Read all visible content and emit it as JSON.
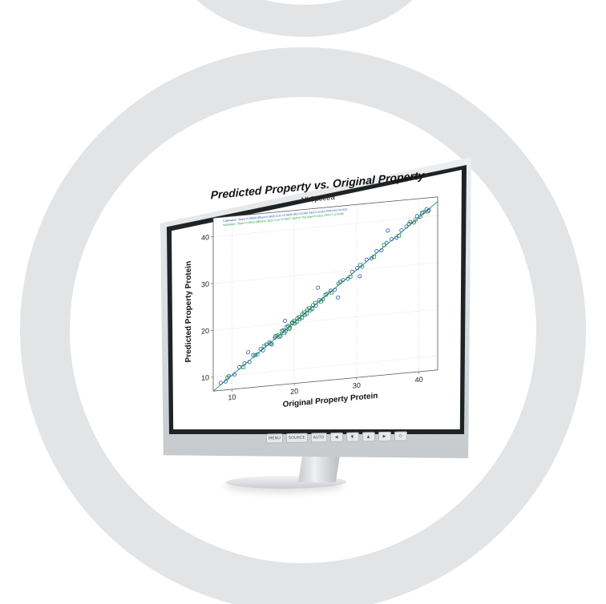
{
  "colors": {
    "ring": "#e3e4e6",
    "calibration": "#2a4fb8",
    "validation": "#1f9a3a",
    "regression_line": "#1f9a6a"
  },
  "monitor": {
    "buttons": [
      "MENU",
      "SOURCE",
      "AUTO",
      "◀",
      "▼",
      "▲",
      "▶",
      "⏻"
    ]
  },
  "chart_data": {
    "type": "scatter",
    "title": "Predicted Property vs. Original Property",
    "subtitle": "All Spectra",
    "xlabel": "Original Property Protein",
    "ylabel": "Predicted Property Protein",
    "xlim": [
      7,
      43
    ],
    "ylim": [
      7,
      44
    ],
    "xticks": [
      10,
      20,
      30,
      40
    ],
    "yticks": [
      10,
      20,
      30,
      40
    ],
    "grid": true,
    "legend_position": "top-left",
    "legend": [
      "Calibration: Slope=0.9958 Offset=0.0826 Corr.=0.9930 SEC=0.598 SECV=0.651 RPD=8.5 N=310",
      "Validation: Slope=0.9903 Offset=0.1821 Corr.=0.9907 SEP=0.702 Bias=0.0231 RPD=7.4 N=96"
    ],
    "series": [
      {
        "name": "Calibration",
        "marker": "circle",
        "points": [
          [
            8.2,
            8.6
          ],
          [
            9.0,
            8.8
          ],
          [
            9.5,
            9.9
          ],
          [
            10.4,
            10.1
          ],
          [
            11.2,
            11.6
          ],
          [
            12.0,
            12.3
          ],
          [
            12.8,
            12.5
          ],
          [
            13.4,
            13.9
          ],
          [
            14.1,
            14.0
          ],
          [
            14.6,
            15.1
          ],
          [
            15.0,
            14.7
          ],
          [
            15.5,
            15.9
          ],
          [
            16.0,
            16.3
          ],
          [
            16.4,
            15.8
          ],
          [
            16.9,
            17.2
          ],
          [
            17.3,
            17.6
          ],
          [
            17.8,
            17.4
          ],
          [
            18.2,
            18.6
          ],
          [
            18.6,
            18.3
          ],
          [
            19.0,
            19.4
          ],
          [
            19.3,
            19.0
          ],
          [
            19.7,
            20.1
          ],
          [
            20.1,
            19.8
          ],
          [
            20.5,
            20.9
          ],
          [
            20.9,
            20.6
          ],
          [
            21.3,
            21.7
          ],
          [
            21.7,
            21.4
          ],
          [
            22.1,
            22.5
          ],
          [
            22.6,
            22.3
          ],
          [
            23.0,
            23.4
          ],
          [
            23.5,
            23.2
          ],
          [
            24.0,
            24.3
          ],
          [
            24.6,
            24.4
          ],
          [
            25.2,
            25.5
          ],
          [
            25.8,
            26.1
          ],
          [
            26.5,
            26.2
          ],
          [
            27.1,
            27.5
          ],
          [
            27.8,
            28.1
          ],
          [
            28.6,
            28.3
          ],
          [
            29.3,
            29.7
          ],
          [
            30.1,
            30.4
          ],
          [
            30.9,
            30.6
          ],
          [
            31.6,
            32.0
          ],
          [
            32.4,
            32.2
          ],
          [
            33.2,
            33.6
          ],
          [
            34.0,
            33.7
          ],
          [
            34.8,
            35.2
          ],
          [
            35.6,
            35.9
          ],
          [
            36.4,
            36.1
          ],
          [
            37.2,
            37.6
          ],
          [
            38.0,
            38.3
          ],
          [
            38.6,
            39.2
          ],
          [
            39.2,
            39.0
          ],
          [
            39.7,
            40.3
          ],
          [
            40.2,
            40.1
          ],
          [
            40.7,
            41.0
          ],
          [
            41.2,
            41.6
          ],
          [
            41.6,
            41.3
          ],
          [
            23.8,
            27.0
          ],
          [
            27.0,
            24.5
          ],
          [
            35.0,
            37.8
          ],
          [
            18.5,
            20.6
          ],
          [
            12.6,
            14.6
          ],
          [
            30.5,
            28.6
          ]
        ]
      },
      {
        "name": "Validation",
        "marker": "square",
        "points": [
          [
            9.3,
            9.6
          ],
          [
            11.8,
            11.5
          ],
          [
            13.7,
            13.8
          ],
          [
            15.2,
            15.6
          ],
          [
            16.2,
            16.0
          ],
          [
            17.0,
            17.5
          ],
          [
            17.6,
            17.3
          ],
          [
            18.0,
            18.4
          ],
          [
            18.4,
            18.0
          ],
          [
            18.8,
            19.2
          ],
          [
            19.2,
            18.8
          ],
          [
            19.6,
            19.9
          ],
          [
            20.0,
            20.4
          ],
          [
            20.4,
            20.1
          ],
          [
            20.8,
            21.1
          ],
          [
            21.2,
            20.9
          ],
          [
            21.6,
            22.0
          ],
          [
            22.0,
            21.7
          ],
          [
            22.4,
            22.8
          ],
          [
            22.9,
            22.6
          ],
          [
            23.4,
            23.8
          ],
          [
            24.3,
            24.0
          ],
          [
            25.0,
            25.3
          ],
          [
            26.0,
            25.7
          ],
          [
            27.4,
            27.8
          ],
          [
            29.0,
            28.7
          ],
          [
            30.6,
            31.0
          ],
          [
            32.8,
            32.5
          ],
          [
            34.4,
            34.8
          ],
          [
            36.8,
            36.5
          ],
          [
            38.4,
            38.8
          ],
          [
            39.5,
            39.6
          ],
          [
            40.5,
            40.9
          ],
          [
            41.4,
            41.1
          ]
        ]
      }
    ]
  }
}
